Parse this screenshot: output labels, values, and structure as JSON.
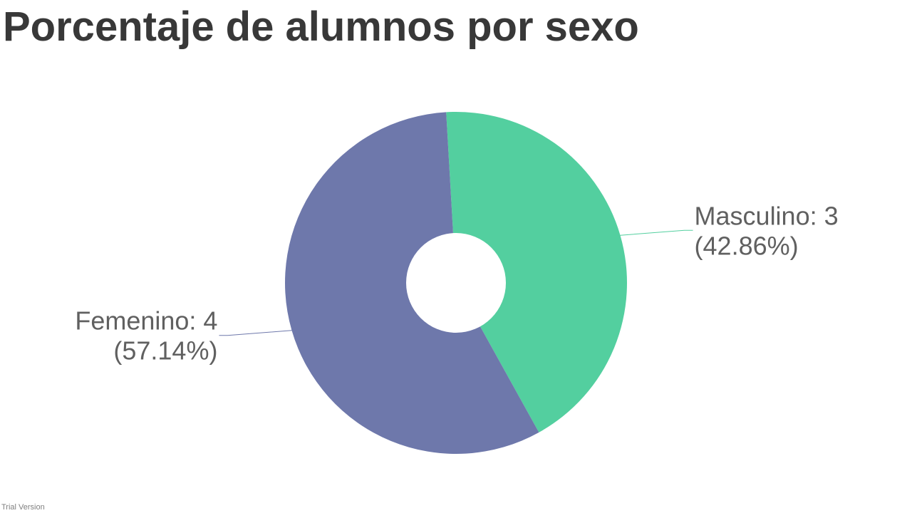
{
  "chart_data": {
    "type": "pie",
    "title": "Porcentaje de alumnos por sexo",
    "donut": true,
    "legend": "none",
    "slices": [
      {
        "label": "Masculino",
        "value": 3,
        "percent": 42.86,
        "color": "#53cf9f",
        "text_line1": "Masculino: 3",
        "text_line2": "(42.86%)"
      },
      {
        "label": "Femenino",
        "value": 4,
        "percent": 57.14,
        "color": "#6e78ab",
        "text_line1": "Femenino: 4",
        "text_line2": "(57.14%)"
      }
    ]
  },
  "footer": {
    "watermark": "Trial Version"
  },
  "colors": {
    "title": "#383838",
    "label_text": "#606060",
    "watermark": "#808080"
  }
}
